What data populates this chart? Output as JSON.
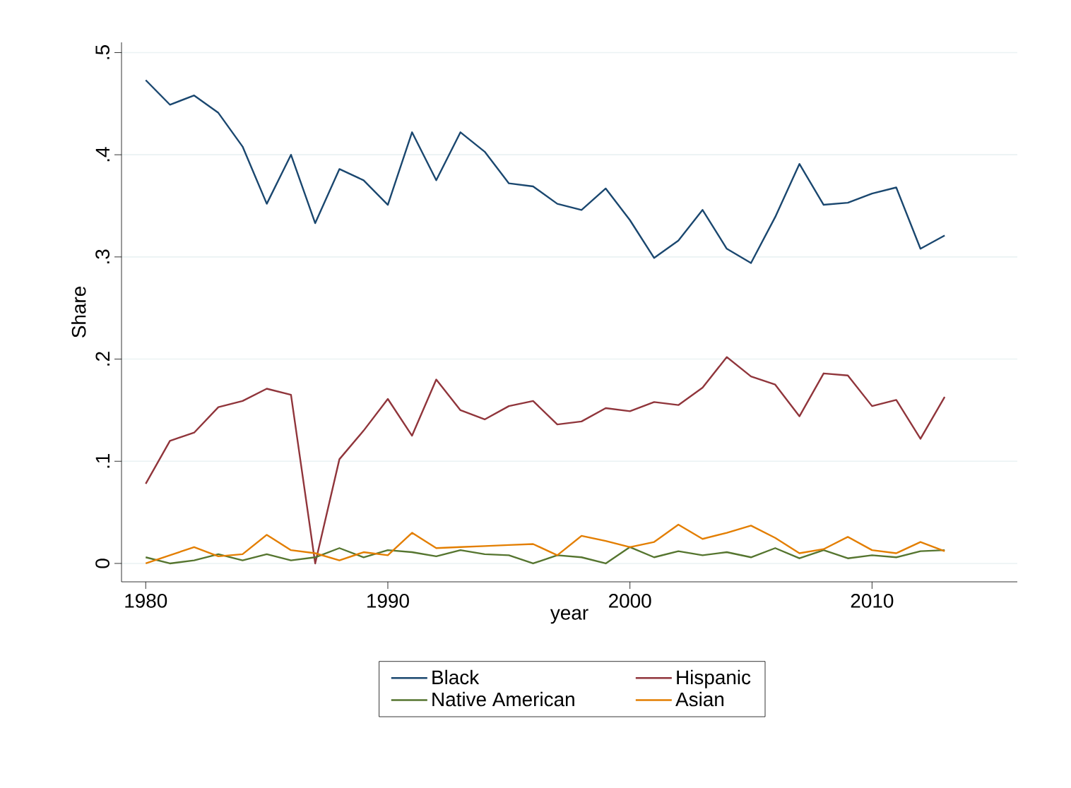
{
  "chart_data": {
    "type": "line",
    "xlabel": "year",
    "ylabel": "Share",
    "x": [
      1980,
      1981,
      1982,
      1983,
      1984,
      1985,
      1986,
      1987,
      1988,
      1989,
      1990,
      1991,
      1992,
      1993,
      1994,
      1995,
      1996,
      1997,
      1998,
      1999,
      2000,
      2001,
      2002,
      2003,
      2004,
      2005,
      2006,
      2007,
      2008,
      2009,
      2010,
      2011,
      2012,
      2013
    ],
    "series": [
      {
        "name": "Black",
        "color": "#1a476f",
        "values": [
          0.473,
          0.449,
          0.458,
          0.441,
          0.408,
          0.352,
          0.4,
          0.333,
          0.386,
          0.375,
          0.351,
          0.422,
          0.375,
          0.422,
          0.403,
          0.372,
          0.369,
          0.352,
          0.346,
          0.367,
          0.336,
          0.299,
          0.316,
          0.346,
          0.308,
          0.294,
          0.339,
          0.391,
          0.351,
          0.353,
          0.362,
          0.368,
          0.308,
          0.321
        ]
      },
      {
        "name": "Hispanic",
        "color": "#90353b",
        "values": [
          0.078,
          0.12,
          0.128,
          0.153,
          0.159,
          0.171,
          0.165,
          0.0,
          0.102,
          0.13,
          0.161,
          0.125,
          0.18,
          0.15,
          0.141,
          0.154,
          0.159,
          0.136,
          0.139,
          0.152,
          0.149,
          0.158,
          0.155,
          0.172,
          0.202,
          0.183,
          0.175,
          0.144,
          0.186,
          0.184,
          0.154,
          0.16,
          0.122,
          0.163
        ]
      },
      {
        "name": "Native American",
        "color": "#55752f",
        "values": [
          0.006,
          0.0,
          0.003,
          0.009,
          0.003,
          0.009,
          0.003,
          0.006,
          0.015,
          0.006,
          0.013,
          0.011,
          0.007,
          0.013,
          0.009,
          0.008,
          0.0,
          0.008,
          0.006,
          0.0,
          0.016,
          0.006,
          0.012,
          0.008,
          0.011,
          0.006,
          0.015,
          0.005,
          0.013,
          0.005,
          0.008,
          0.006,
          0.012,
          0.013
        ]
      },
      {
        "name": "Asian",
        "color": "#e37e00",
        "values": [
          0.0,
          0.008,
          0.016,
          0.007,
          0.009,
          0.028,
          0.013,
          0.01,
          0.003,
          0.011,
          0.008,
          0.03,
          0.015,
          0.016,
          0.017,
          0.018,
          0.019,
          0.008,
          0.027,
          0.022,
          0.016,
          0.021,
          0.038,
          0.024,
          0.03,
          0.037,
          0.025,
          0.01,
          0.014,
          0.026,
          0.013,
          0.01,
          0.021,
          0.012
        ]
      }
    ],
    "xlim": [
      1979,
      2016
    ],
    "ylim": [
      -0.018,
      0.51
    ],
    "xticks": [
      1980,
      1990,
      2000,
      2010
    ],
    "yticks": [
      0,
      {
        "value": 0.1,
        "label": ".1"
      },
      {
        "value": 0.2,
        "label": ".2"
      },
      {
        "value": 0.3,
        "label": ".3"
      },
      {
        "value": 0.4,
        "label": ".4"
      },
      {
        "value": 0.5,
        "label": ".5"
      }
    ],
    "grid": "y",
    "legend": "bottom",
    "marker": "none",
    "line_style": "solid"
  }
}
